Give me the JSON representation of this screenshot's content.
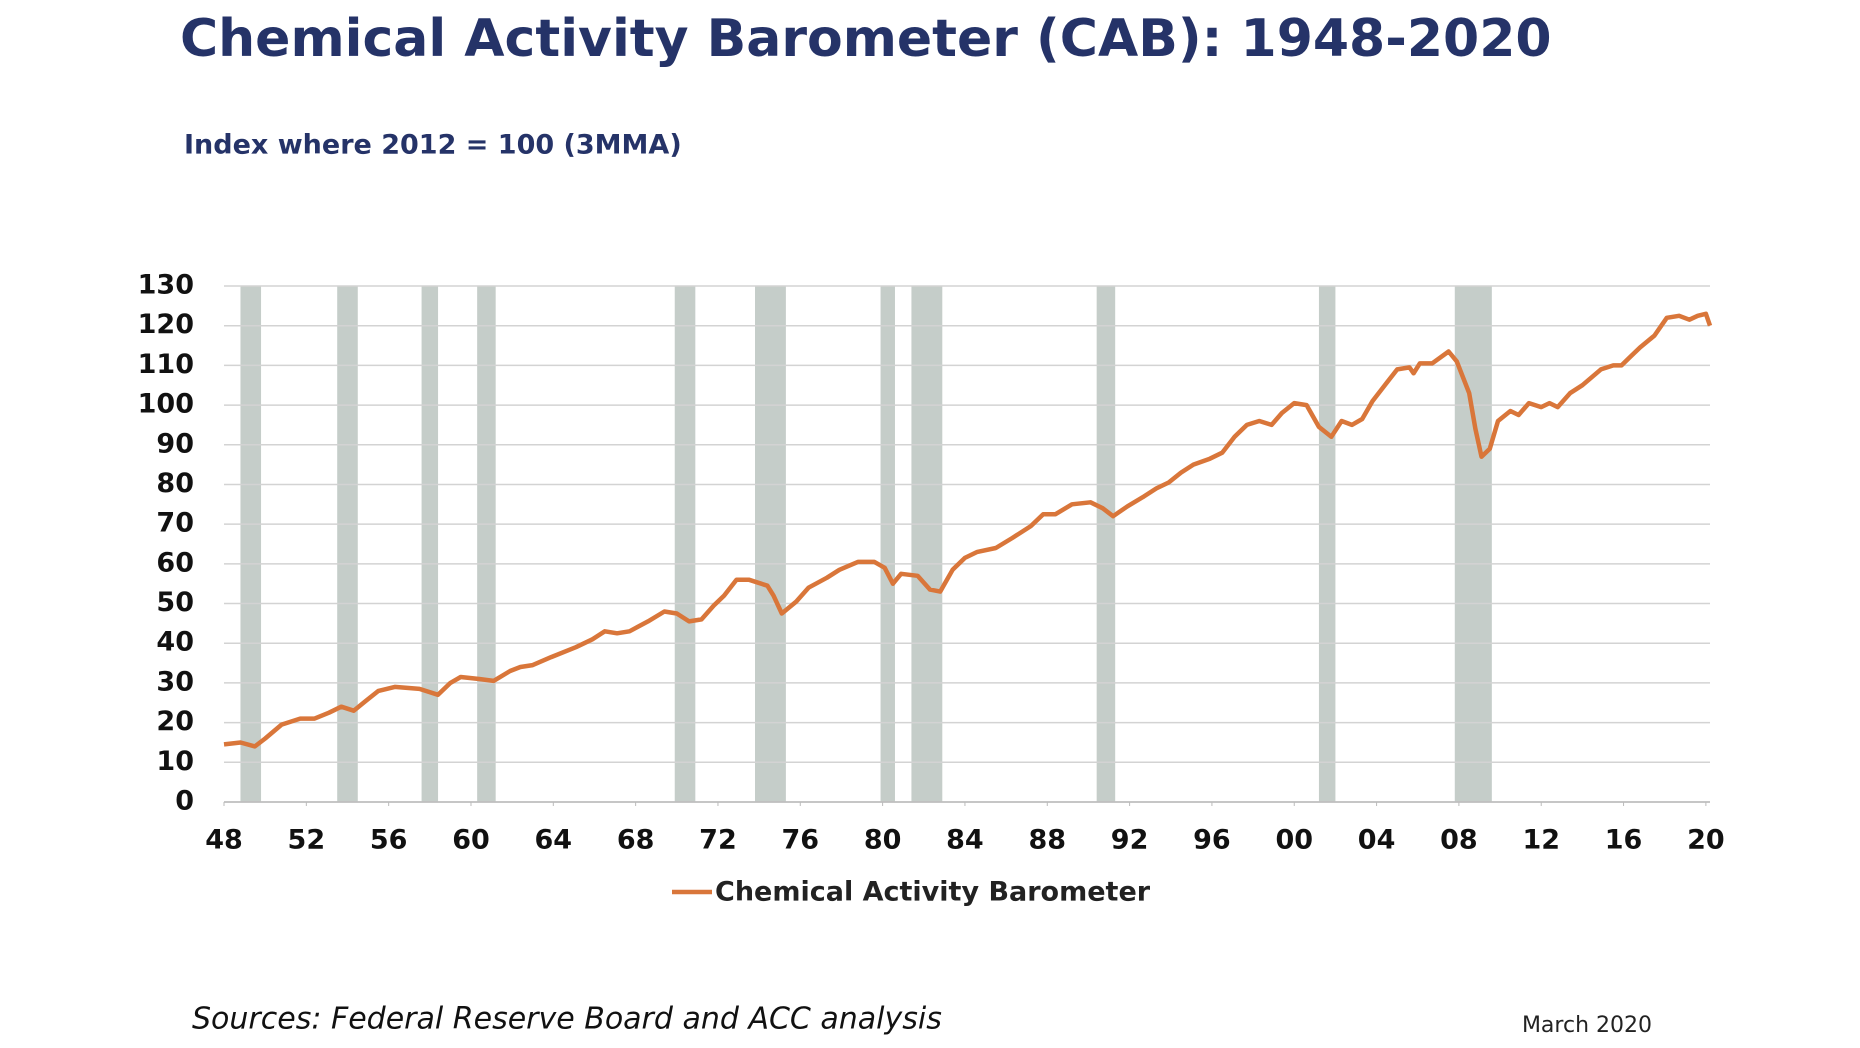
{
  "chart_data": {
    "type": "line",
    "title": "Chemical Activity Barometer (CAB): 1948-2020",
    "subtitle": "Index where 2012 = 100 (3MMA)",
    "source": "Sources: Federal Reserve Board and ACC analysis",
    "date": "March 2020",
    "xlim": [
      1948,
      2020.2
    ],
    "ylim": [
      0,
      130
    ],
    "yticks": [
      0,
      10,
      20,
      30,
      40,
      50,
      60,
      70,
      80,
      90,
      100,
      110,
      120,
      130
    ],
    "xticks": [
      {
        "value": 1948,
        "label": "48"
      },
      {
        "value": 1952,
        "label": "52"
      },
      {
        "value": 1956,
        "label": "56"
      },
      {
        "value": 1960,
        "label": "60"
      },
      {
        "value": 1964,
        "label": "64"
      },
      {
        "value": 1968,
        "label": "68"
      },
      {
        "value": 1972,
        "label": "72"
      },
      {
        "value": 1976,
        "label": "76"
      },
      {
        "value": 1980,
        "label": "80"
      },
      {
        "value": 1984,
        "label": "84"
      },
      {
        "value": 1988,
        "label": "88"
      },
      {
        "value": 1992,
        "label": "92"
      },
      {
        "value": 1996,
        "label": "96"
      },
      {
        "value": 2000,
        "label": "00"
      },
      {
        "value": 2004,
        "label": "04"
      },
      {
        "value": 2008,
        "label": "08"
      },
      {
        "value": 2012,
        "label": "12"
      },
      {
        "value": 2016,
        "label": "16"
      },
      {
        "value": 2020,
        "label": "20"
      }
    ],
    "grid": true,
    "legend": "bottom",
    "shaded_periods": {
      "color": "#c5cdc9",
      "spans": [
        [
          1948.8,
          1949.8
        ],
        [
          1953.5,
          1954.5
        ],
        [
          1957.6,
          1958.4
        ],
        [
          1960.3,
          1961.2
        ],
        [
          1969.9,
          1970.9
        ],
        [
          1973.8,
          1975.3
        ],
        [
          1979.9,
          1980.6
        ],
        [
          1981.4,
          1982.9
        ],
        [
          1990.4,
          1991.3
        ],
        [
          2001.2,
          2002.0
        ],
        [
          2007.8,
          2009.6
        ]
      ]
    },
    "series": [
      {
        "name": "Chemical Activity Barometer",
        "color": "#d9763a",
        "x": [
          1948.0,
          1948.8,
          1949.5,
          1950.0,
          1950.8,
          1951.7,
          1952.4,
          1953.1,
          1953.7,
          1954.3,
          1954.9,
          1955.5,
          1956.3,
          1957.5,
          1957.8,
          1958.4,
          1959.0,
          1959.5,
          1960.4,
          1961.1,
          1961.9,
          1962.4,
          1963.0,
          1963.9,
          1965.1,
          1965.9,
          1966.5,
          1967.1,
          1967.7,
          1968.6,
          1969.4,
          1970.0,
          1970.6,
          1971.2,
          1971.8,
          1972.3,
          1972.9,
          1973.5,
          1974.4,
          1974.7,
          1975.1,
          1975.8,
          1976.4,
          1977.3,
          1977.9,
          1978.8,
          1979.6,
          1980.1,
          1980.5,
          1980.9,
          1981.7,
          1982.3,
          1982.8,
          1983.4,
          1984.0,
          1984.6,
          1985.5,
          1986.3,
          1987.2,
          1987.8,
          1988.4,
          1989.2,
          1990.1,
          1990.7,
          1991.2,
          1991.9,
          1992.7,
          1993.3,
          1993.9,
          1994.5,
          1995.1,
          1995.9,
          1996.5,
          1997.1,
          1997.7,
          1998.3,
          1998.9,
          1999.4,
          2000.0,
          2000.6,
          2001.2,
          2001.8,
          2002.3,
          2002.8,
          2003.3,
          2003.8,
          2004.4,
          2005.0,
          2005.6,
          2005.8,
          2006.1,
          2006.7,
          2007.5,
          2007.9,
          2008.5,
          2008.8,
          2009.1,
          2009.5,
          2009.9,
          2010.5,
          2010.9,
          2011.4,
          2012.0,
          2012.4,
          2012.8,
          2013.4,
          2014.0,
          2014.9,
          2015.5,
          2015.9,
          2016.3,
          2016.8,
          2017.5,
          2018.1,
          2018.7,
          2019.2,
          2019.6,
          2020.0,
          2020.2
        ],
        "values": [
          14.5,
          15,
          14,
          16,
          19.5,
          21,
          21,
          22.5,
          24,
          23,
          25.5,
          28,
          29,
          28.5,
          28,
          27,
          30,
          31.5,
          31,
          30.5,
          33,
          34,
          34.5,
          36.5,
          39,
          41,
          43,
          42.5,
          43,
          45.5,
          48,
          47.5,
          45.5,
          46,
          49.5,
          52,
          56,
          56,
          54.5,
          52,
          47.5,
          50.5,
          54,
          56.5,
          58.5,
          60.5,
          60.5,
          59,
          55,
          57.5,
          57,
          53.5,
          53,
          58.5,
          61.5,
          63,
          64,
          66.5,
          69.5,
          72.5,
          72.5,
          75,
          75.5,
          74,
          72,
          74.5,
          77,
          79,
          80.5,
          83,
          85,
          86.5,
          88,
          92,
          95,
          96,
          95,
          98,
          100.5,
          100,
          94.5,
          92,
          96,
          95,
          96.5,
          101,
          105,
          109,
          109.5,
          108,
          110.5,
          110.5,
          113.5,
          111,
          103,
          94,
          87,
          89,
          96,
          98.5,
          97.5,
          100.5,
          99.5,
          100.5,
          99.5,
          103,
          105,
          109,
          110,
          110,
          112,
          114.5,
          117.5,
          122,
          122.5,
          121.5,
          122.5,
          123,
          120
        ]
      }
    ]
  }
}
